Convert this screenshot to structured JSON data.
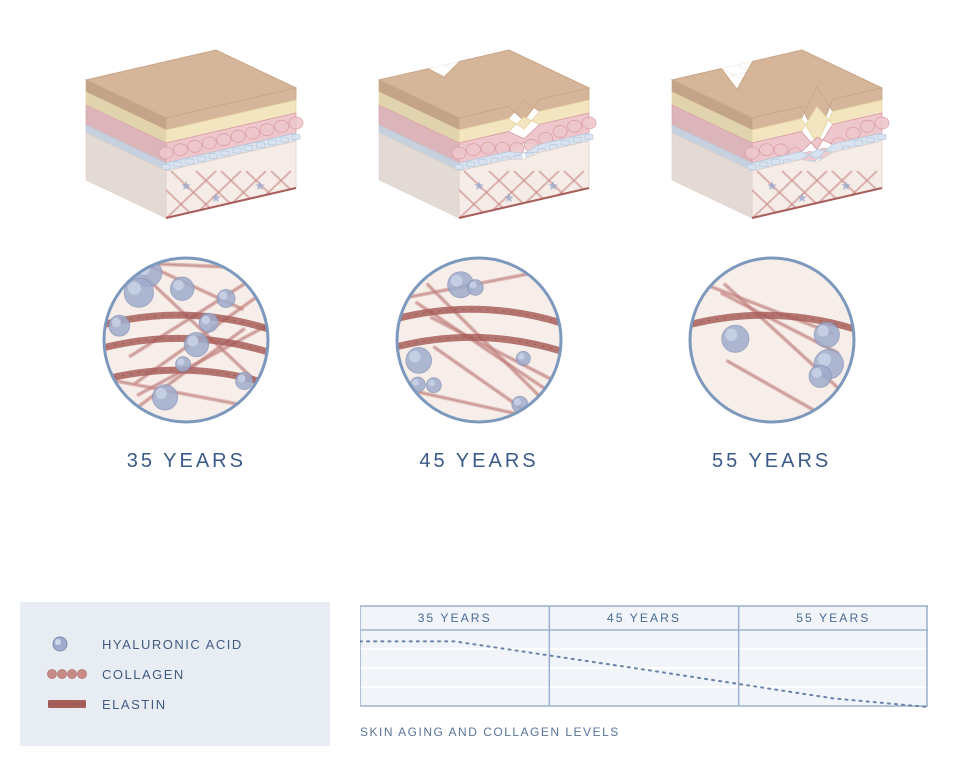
{
  "colors": {
    "epidermis_top": "#d6b69a",
    "epidermis_top_dark": "#c9a586",
    "yellow_layer": "#f2e5c0",
    "yellow_layer_shade": "#e6d4a4",
    "pink_cells": "#eec7cc",
    "pink_cells_line": "#d89ba4",
    "blue_cells": "#b6c9de",
    "blue_cells_fill": "#d9e3ef",
    "dermis_bg": "#f6ece7",
    "dermis_side": "#e8d8cf",
    "collagen": "#c88a87",
    "collagen_dark": "#b37470",
    "elastin": "#a85e5a",
    "elastin_dark": "#8e4a46",
    "hyaluronic": "#9faccb",
    "hyaluronic_dark": "#7e8db3",
    "star": "#8fa3c9",
    "circle_border": "#7d98bd",
    "circle_bg": "#f7eee9",
    "legend_bg": "#e8edf3",
    "text": "#3a5a8a",
    "chart_grid": "#9cb0cc",
    "chart_bg": "#e4ebf3",
    "chart_line": "#6a82a8"
  },
  "stages": [
    {
      "label": "35 YEARS",
      "wrinkle_depth": 0,
      "density": 1.0
    },
    {
      "label": "45 YEARS",
      "wrinkle_depth": 0.35,
      "density": 0.6
    },
    {
      "label": "55 YEARS",
      "wrinkle_depth": 0.7,
      "density": 0.3
    }
  ],
  "legend": {
    "items": [
      {
        "key": "hyaluronic",
        "label": "HYALURONIC ACID"
      },
      {
        "key": "collagen",
        "label": "COLLAGEN"
      },
      {
        "key": "elastin",
        "label": "ELASTIN"
      }
    ]
  },
  "chart": {
    "caption": "SKIN AGING AND COLLAGEN LEVELS",
    "columns": [
      "35 YEARS",
      "45 YEARS",
      "55 YEARS"
    ],
    "levels_y": [
      0.15,
      0.52,
      0.9
    ],
    "grid_rows": 4
  }
}
